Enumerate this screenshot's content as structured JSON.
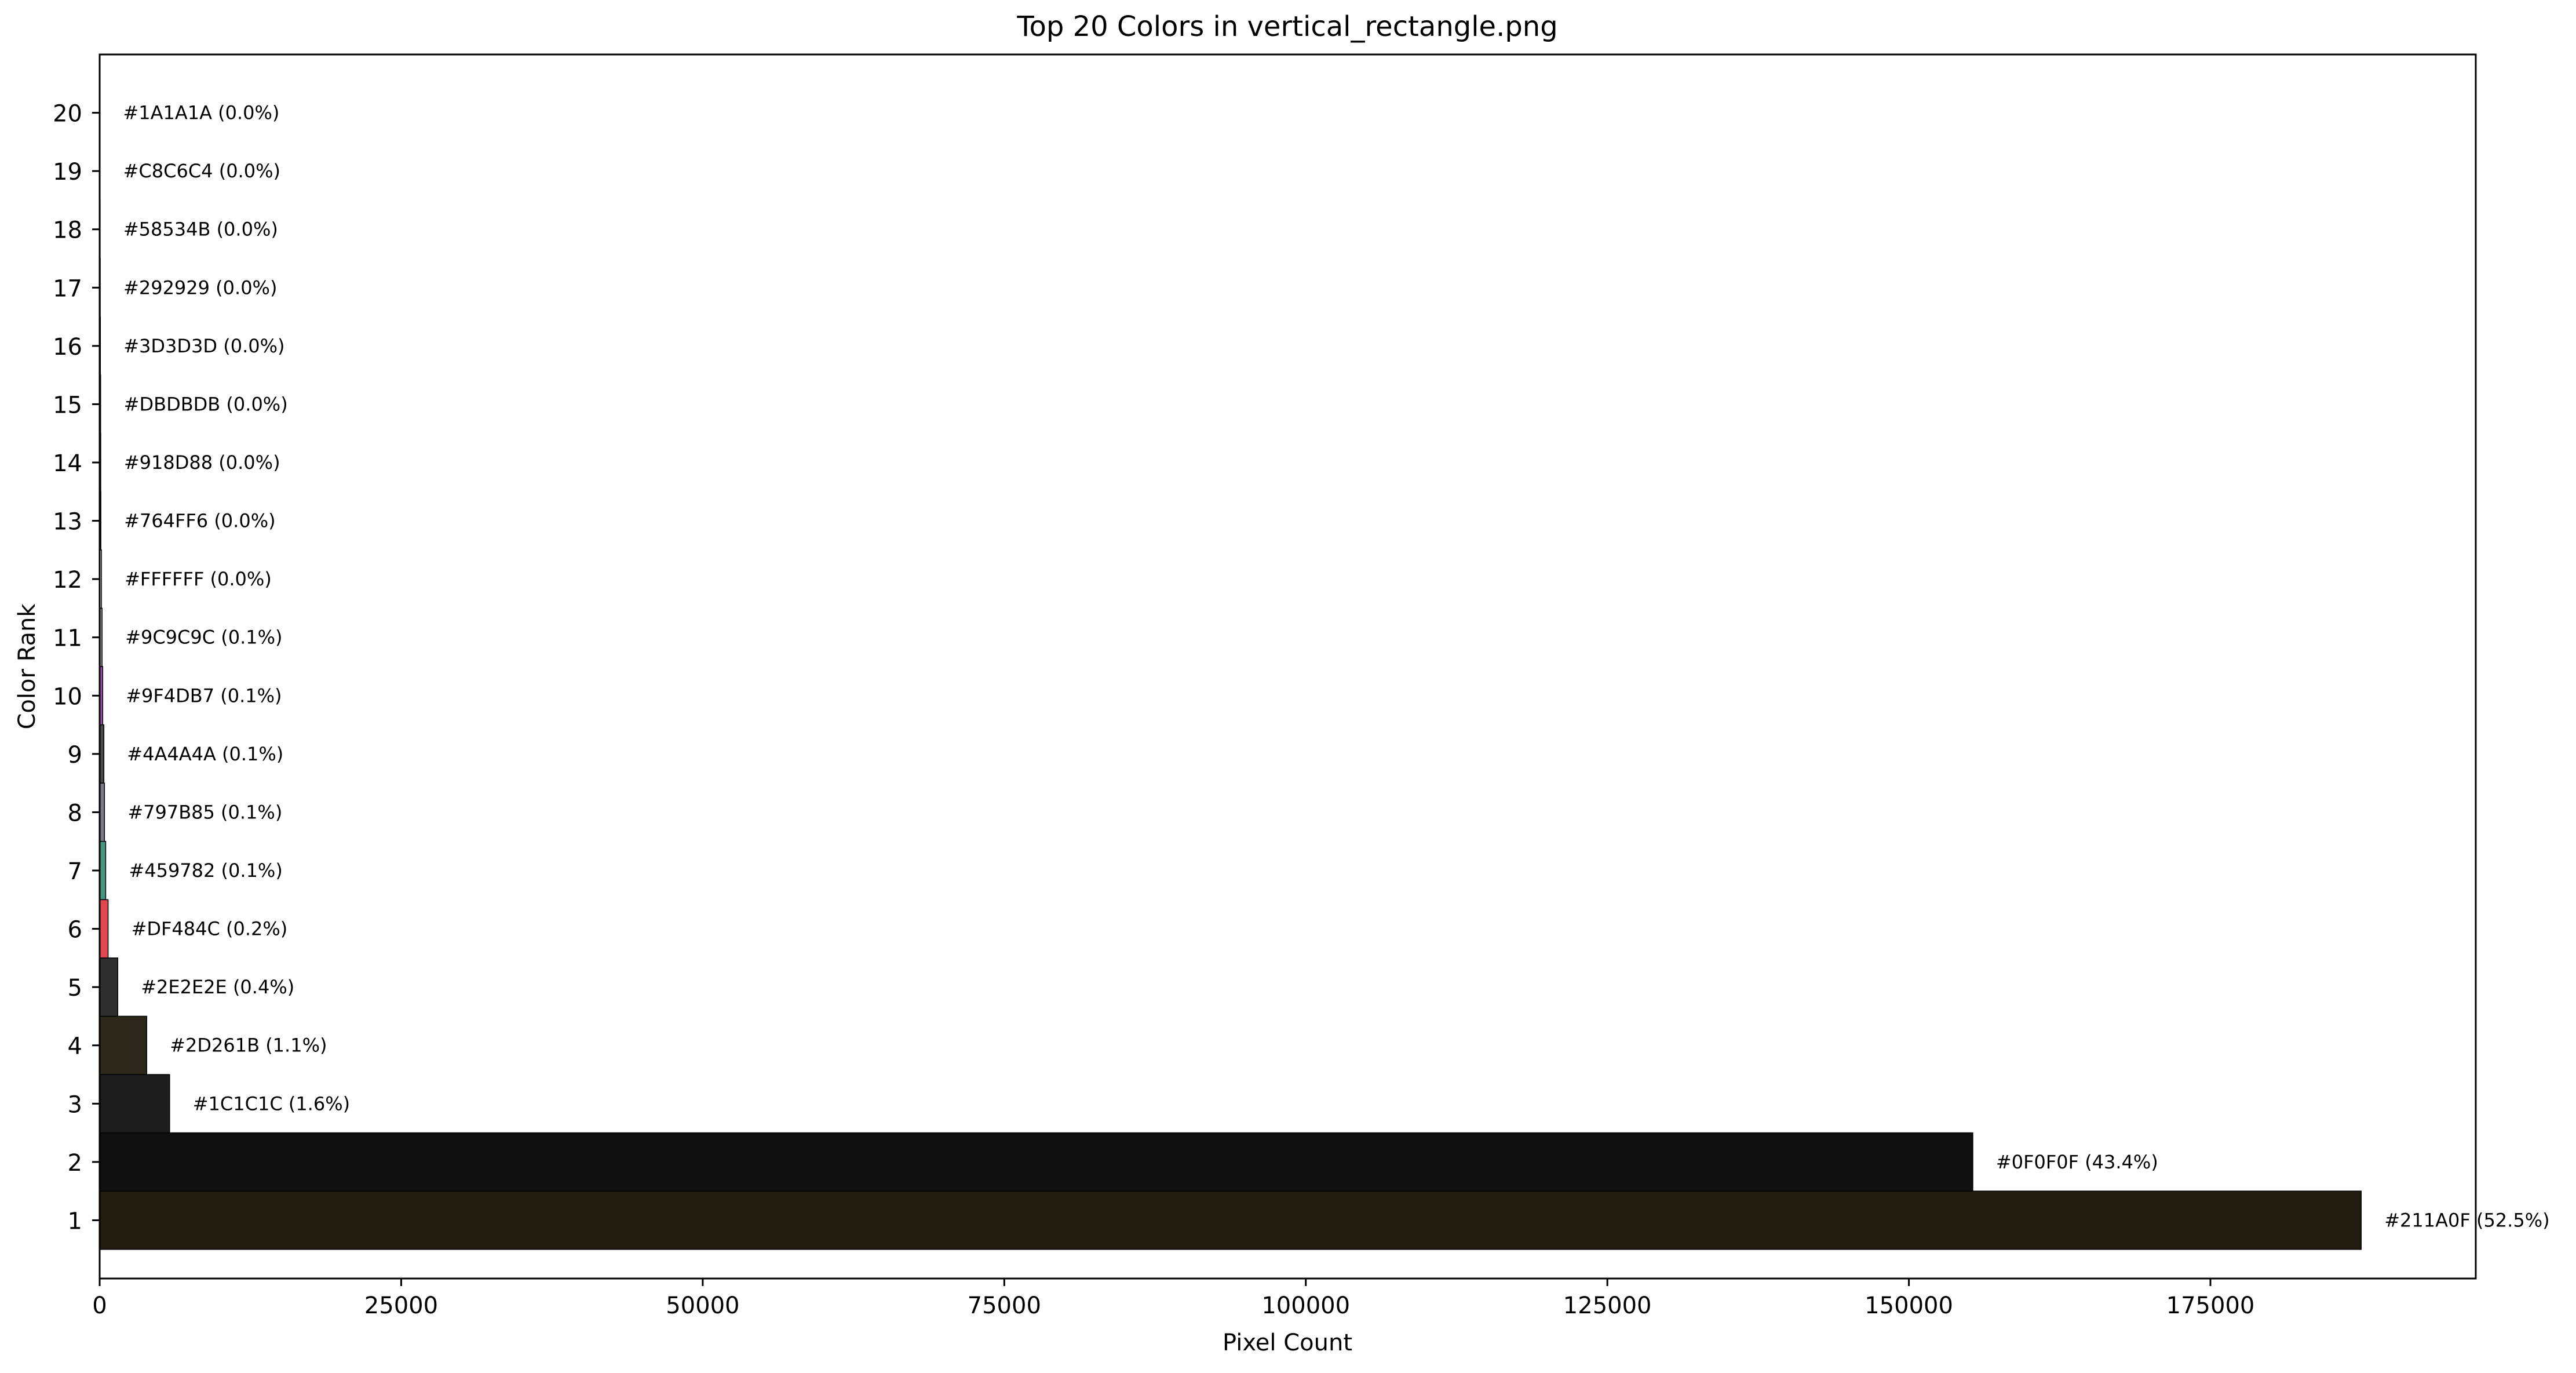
{
  "chart_data": {
    "type": "bar",
    "orientation": "horizontal",
    "title": "Top 20 Colors in vertical_rectangle.png",
    "xlabel": "Pixel Count",
    "ylabel": "Color Rank",
    "xlim": [
      0,
      197000
    ],
    "ylim": [
      0,
      21
    ],
    "x_ticks": [
      0,
      25000,
      50000,
      75000,
      100000,
      125000,
      150000,
      175000
    ],
    "x_tick_labels": [
      "0",
      "25000",
      "50000",
      "75000",
      "100000",
      "125000",
      "150000",
      "175000"
    ],
    "grid": false,
    "legend": "none",
    "bars": [
      {
        "rank": 1,
        "label": "#211A0F (52.5%)",
        "color": "#211A0F",
        "value": 187500
      },
      {
        "rank": 2,
        "label": "#0F0F0F (43.4%)",
        "color": "#0F0F0F",
        "value": 155300
      },
      {
        "rank": 3,
        "label": "#1C1C1C (1.6%)",
        "color": "#1C1C1C",
        "value": 5800
      },
      {
        "rank": 4,
        "label": "#2D261B (1.1%)",
        "color": "#2D261B",
        "value": 3900
      },
      {
        "rank": 5,
        "label": "#2E2E2E (0.4%)",
        "color": "#2E2E2E",
        "value": 1500
      },
      {
        "rank": 6,
        "label": "#DF484C (0.2%)",
        "color": "#DF484C",
        "value": 700
      },
      {
        "rank": 7,
        "label": "#459782 (0.1%)",
        "color": "#459782",
        "value": 500
      },
      {
        "rank": 8,
        "label": "#797B85 (0.1%)",
        "color": "#797B85",
        "value": 400
      },
      {
        "rank": 9,
        "label": "#4A4A4A (0.1%)",
        "color": "#4A4A4A",
        "value": 350
      },
      {
        "rank": 10,
        "label": "#9F4DB7 (0.1%)",
        "color": "#9F4DB7",
        "value": 250
      },
      {
        "rank": 11,
        "label": "#9C9C9C (0.1%)",
        "color": "#9C9C9C",
        "value": 200
      },
      {
        "rank": 12,
        "label": "#FFFFFF (0.0%)",
        "color": "#FFFFFF",
        "value": 150
      },
      {
        "rank": 13,
        "label": "#764FF6 (0.0%)",
        "color": "#764FF6",
        "value": 100
      },
      {
        "rank": 14,
        "label": "#918D88 (0.0%)",
        "color": "#918D88",
        "value": 90
      },
      {
        "rank": 15,
        "label": "#DBDBDB (0.0%)",
        "color": "#DBDBDB",
        "value": 80
      },
      {
        "rank": 16,
        "label": "#3D3D3D (0.0%)",
        "color": "#3D3D3D",
        "value": 60
      },
      {
        "rank": 17,
        "label": "#292929 (0.0%)",
        "color": "#292929",
        "value": 50
      },
      {
        "rank": 18,
        "label": "#58534B (0.0%)",
        "color": "#58534B",
        "value": 40
      },
      {
        "rank": 19,
        "label": "#C8C6C4 (0.0%)",
        "color": "#C8C6C4",
        "value": 30
      },
      {
        "rank": 20,
        "label": "#1A1A1A (0.0%)",
        "color": "#1A1A1A",
        "value": 20
      }
    ]
  }
}
